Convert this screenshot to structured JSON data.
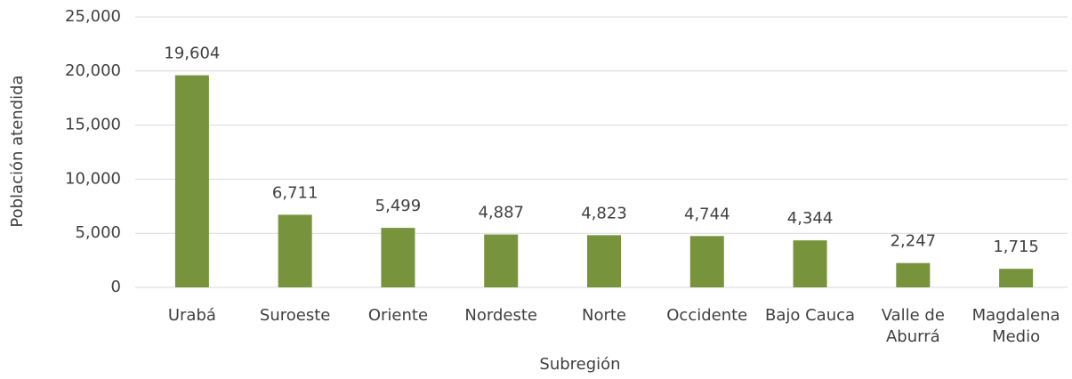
{
  "chart_data": {
    "type": "bar",
    "x_label": "Subregión",
    "y_label": "Población atendida",
    "categories": [
      "Urabá",
      "Suroeste",
      "Oriente",
      "Nordeste",
      "Norte",
      "Occidente",
      "Bajo Cauca",
      "Valle de Aburrá",
      "Magdalena Medio"
    ],
    "values": [
      19604,
      6711,
      5499,
      4887,
      4823,
      4744,
      4344,
      2247,
      1715
    ],
    "value_labels": [
      "19,604",
      "6,711",
      "5,499",
      "4,887",
      "4,823",
      "4,744",
      "4,344",
      "2,247",
      "1,715"
    ],
    "color": "#77933c",
    "ylim": [
      0,
      25000
    ],
    "yticks": [
      0,
      {
        "value": 5000,
        "label": "5,000"
      },
      {
        "value": 10000,
        "label": "10,000"
      },
      {
        "value": 15000,
        "label": "15,000"
      },
      {
        "value": 20000,
        "label": "20,000"
      },
      {
        "value": 25000,
        "label": "25,000"
      }
    ],
    "grid": true
  }
}
